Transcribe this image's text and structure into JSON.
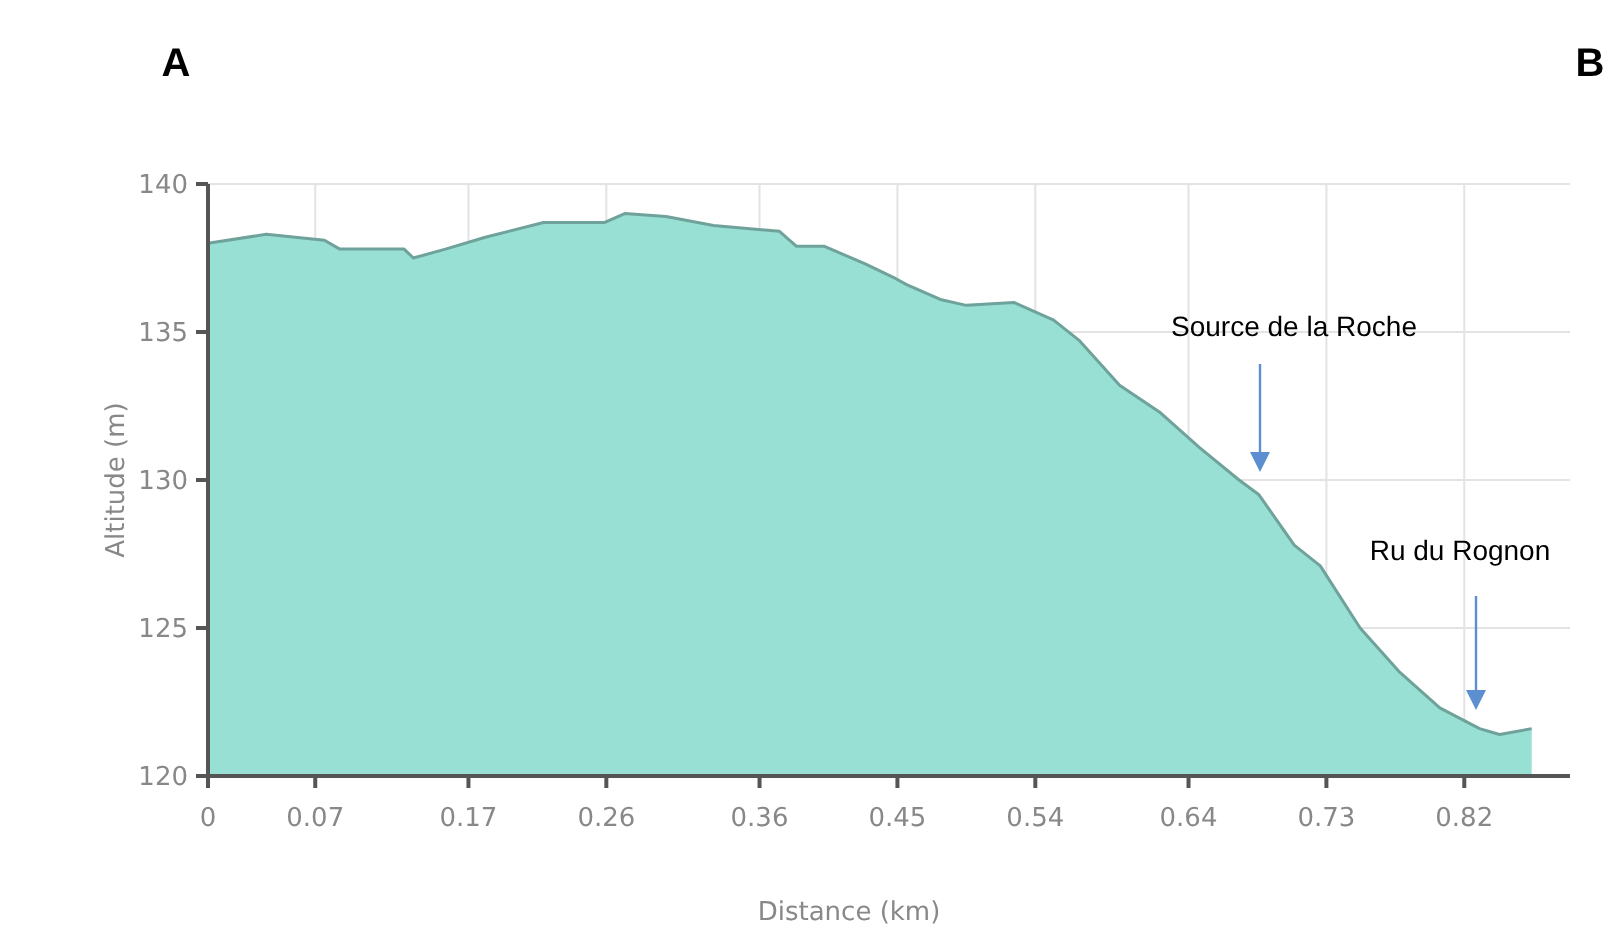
{
  "chart_data": {
    "type": "area",
    "xlabel": "Distance (km)",
    "ylabel": "Altitude (m)",
    "x": [
      0,
      0.038,
      0.076,
      0.086,
      0.128,
      0.134,
      0.155,
      0.181,
      0.219,
      0.259,
      0.272,
      0.299,
      0.33,
      0.373,
      0.384,
      0.402,
      0.429,
      0.449,
      0.456,
      0.478,
      0.495,
      0.526,
      0.552,
      0.569,
      0.595,
      0.621,
      0.647,
      0.673,
      0.686,
      0.709,
      0.726,
      0.752,
      0.778,
      0.804,
      0.83,
      0.843,
      0.864
    ],
    "series": [
      {
        "color": "#98e0d4",
        "values": [
          138.0,
          138.3,
          138.1,
          137.8,
          137.8,
          137.5,
          137.8,
          138.2,
          138.7,
          138.7,
          139.0,
          138.9,
          138.6,
          138.4,
          137.9,
          137.9,
          137.3,
          136.8,
          136.6,
          136.1,
          135.9,
          136.0,
          135.4,
          134.7,
          133.2,
          132.3,
          131.1,
          130.0,
          129.5,
          127.8,
          127.1,
          125.0,
          123.5,
          122.3,
          121.6,
          121.4,
          121.6
        ]
      }
    ],
    "xlim": [
      0,
      0.889
    ],
    "xticks": [
      0,
      0.07,
      0.17,
      0.26,
      0.36,
      0.45,
      0.54,
      0.64,
      0.73,
      0.82
    ],
    "ylim": [
      120,
      140
    ],
    "yticks": [
      120,
      125,
      130,
      135,
      140
    ],
    "grid": true,
    "annotations": [
      "A",
      "B",
      "Source de la Roche",
      "Ru du Rognon"
    ]
  }
}
